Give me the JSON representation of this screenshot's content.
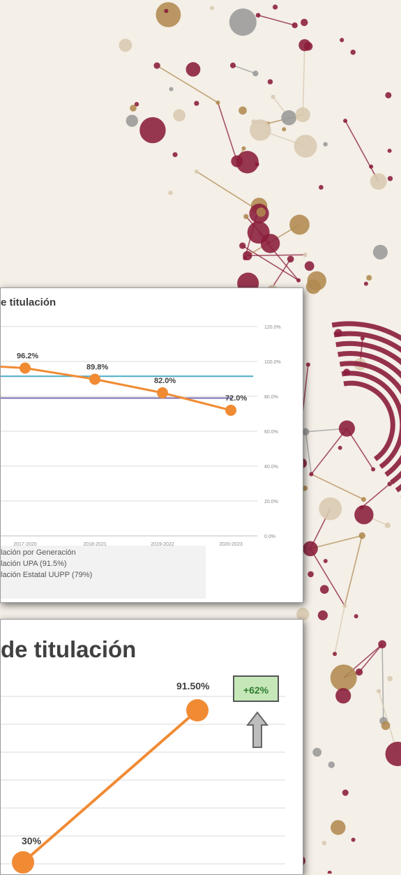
{
  "panel1": {
    "title": "e titulación",
    "legend": [
      "lación por Generación",
      "lación UPA (91.5%)",
      "lación Estatal UUPP (79%)"
    ]
  },
  "panel2": {
    "title": "de titulación",
    "delta_label": "+62%"
  },
  "colors": {
    "accent_maroon": "#8a1c3a",
    "series_orange": "#f08b34",
    "line_upa": "#4bacc6",
    "line_estatal": "#7b6cb0",
    "delta_green": "#c6e8b8"
  },
  "chart_data": [
    {
      "type": "line",
      "title": "e titulación",
      "categories": [
        "2017-2020",
        "2018-2021",
        "2019-2022",
        "2020-2023"
      ],
      "series": [
        {
          "name": "lación por Generación",
          "values": [
            96.2,
            89.8,
            82.0,
            72.0
          ],
          "labels": [
            "96.2%",
            "89.8%",
            "82.0%",
            "72.0%"
          ]
        },
        {
          "name": "lación UPA (91.5%)",
          "values": [
            91.5,
            91.5,
            91.5,
            91.5
          ]
        },
        {
          "name": "lación Estatal UUPP (79%)",
          "values": [
            79,
            79,
            79,
            79
          ]
        }
      ],
      "y_ticks": [
        "120.0%",
        "100.0%",
        "80.0%",
        "60.0%",
        "40.0%",
        "20.0%",
        "0.0%"
      ],
      "ylim": [
        0,
        120
      ],
      "grid": true,
      "legend_position": "bottom-left"
    },
    {
      "type": "line",
      "title": "de titulación",
      "series": [
        {
          "values": [
            30,
            91.5
          ],
          "labels": [
            "30%",
            "91.50%"
          ]
        }
      ],
      "grid": true
    }
  ]
}
